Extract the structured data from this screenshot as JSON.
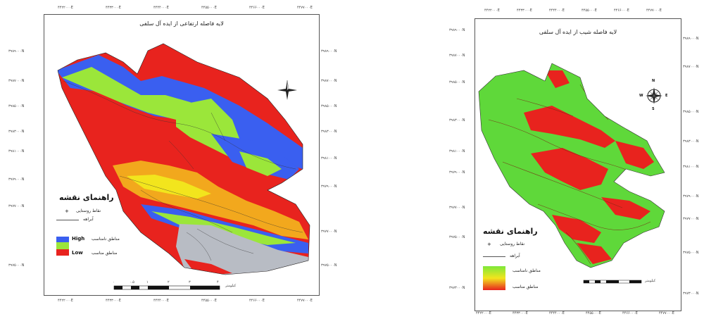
{
  "left_map": {
    "title": "لایه فاصله ارتفاعی از ایده آل سلفی",
    "legend": {
      "title": "راهنمای نقشه",
      "point_label": "نقاط روستایی",
      "line_label": "آبراهه",
      "zone_label": "مناطق نامناسب",
      "zone_label_2": "مناطق مناسب",
      "high_label": "High",
      "low_label": "Low",
      "colors": {
        "high": "#3a5ff0",
        "mid": "#9be63a",
        "low": "#e8231e"
      }
    },
    "top_ticks": [
      "۴۴۲۲۰۰۰E",
      "۴۴۳۳۰۰۰E",
      "۴۴۴۴۰۰۰E",
      "۴۴۵۵۰۰۰E",
      "۴۴۶۶۰۰۰E",
      "۴۴۷۷۰۰۰E"
    ],
    "left_ticks": [
      "۳۹۸۹۰۰۰N",
      "۳۹۸۷۰۰۰N",
      "۳۹۸۵۰۰۰N",
      "۳۹۸۳۰۰۰N",
      "۳۹۸۱۰۰۰N",
      "۳۹۷۹۰۰۰N",
      "۳۹۷۷۰۰۰N",
      "۳۹۷۵۰۰۰N"
    ],
    "scale_label": "کیلومتر",
    "scale_numbers": [
      "۰",
      "۰.۵",
      "۱",
      "۲",
      "۳",
      "۴"
    ],
    "zone_colors": {
      "red": "#e8231e",
      "blue": "#3a5ff0",
      "green": "#9be63a",
      "orange": "#f2a81d",
      "gray": "#b8bcc4",
      "yellow": "#f2e51d"
    }
  },
  "right_map": {
    "title": "لایه فاصله شیب از ایده آل سلفی",
    "legend": {
      "title": "راهنمای نقشه",
      "point_label": "نقاط روستایی",
      "line_label": "آبراهه",
      "zone_label_bad": "مناطق نامناسب",
      "zone_label_good": "مناطق مناسب",
      "gradient_top": "#7ee83a",
      "gradient_mid": "#f2e51d",
      "gradient_bottom": "#e8231e"
    },
    "top_ticks": [
      "۴۴۲۲۰۰۰E",
      "۴۴۳۳۰۰۰E",
      "۴۴۴۴۰۰۰E",
      "۴۴۵۵۰۰۰E",
      "۴۴۶۶۰۰۰E",
      "۴۴۷۷۰۰۰E"
    ],
    "left_ticks": [
      "۳۹۸۹۰۰۰N",
      "۳۹۸۷۰۰۰N",
      "۳۹۸۵۰۰۰N",
      "۳۹۸۳۰۰۰N",
      "۳۹۸۱۰۰۰N",
      "۳۹۷۹۰۰۰N",
      "۳۹۷۷۰۰۰N",
      "۳۹۷۵۰۰۰N",
      "۳۹۷۳۰۰۰N"
    ],
    "scale_label": "کیلومتر",
    "compass_letters": {
      "n": "N",
      "s": "S",
      "e": "E",
      "w": "W"
    },
    "zone_colors": {
      "green": "#5fd83a",
      "red": "#e8231e",
      "dark": "#7a2a16"
    }
  }
}
